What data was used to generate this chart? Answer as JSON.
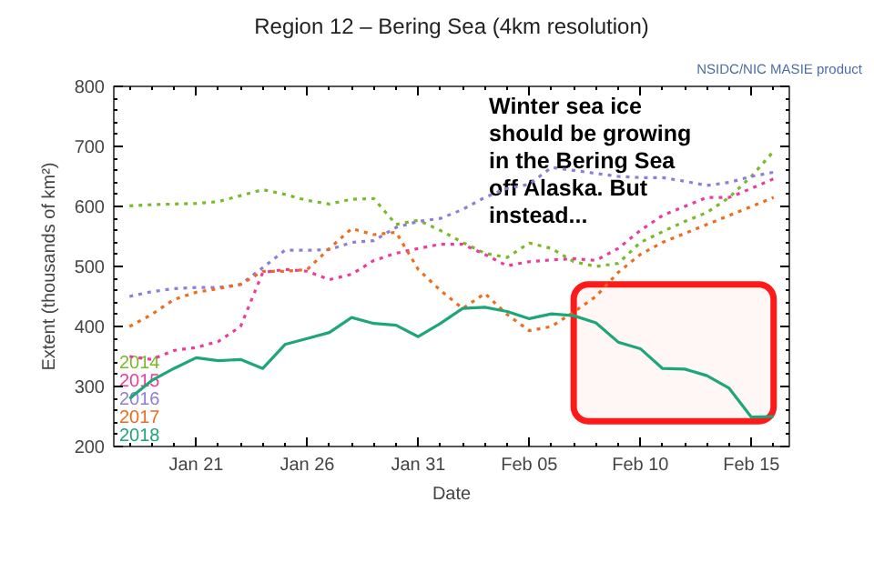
{
  "chart_data": {
    "type": "line",
    "title": "Region 12 – Bering Sea (4km resolution)",
    "xlabel": "Date",
    "ylabel": "Extent (thousands of km²)",
    "x": [
      "2018-01-18",
      "2018-01-19",
      "2018-01-20",
      "2018-01-21",
      "2018-01-22",
      "2018-01-23",
      "2018-01-24",
      "2018-01-25",
      "2018-01-26",
      "2018-01-27",
      "2018-01-28",
      "2018-01-29",
      "2018-01-30",
      "2018-01-31",
      "2018-02-01",
      "2018-02-02",
      "2018-02-03",
      "2018-02-04",
      "2018-02-05",
      "2018-02-06",
      "2018-02-07",
      "2018-02-08",
      "2018-02-09",
      "2018-02-10",
      "2018-02-11",
      "2018-02-12",
      "2018-02-13",
      "2018-02-14",
      "2018-02-15",
      "2018-02-16"
    ],
    "series": [
      {
        "name": "2014",
        "color": "#7ab929",
        "line_style": "dotted",
        "values": [
          601,
          603,
          604,
          605,
          608,
          618,
          628,
          620,
          610,
          604,
          612,
          613,
          570,
          577,
          560,
          540,
          522,
          515,
          539,
          530,
          508,
          500,
          505,
          540,
          558,
          575,
          590,
          615,
          650,
          692
        ]
      },
      {
        "name": "2015",
        "color": "#ec3c9b",
        "line_style": "dotted",
        "values": [
          350,
          345,
          360,
          365,
          375,
          400,
          490,
          495,
          492,
          478,
          487,
          510,
          522,
          530,
          537,
          537,
          520,
          501,
          508,
          511,
          513,
          510,
          530,
          560,
          585,
          600,
          615,
          615,
          630,
          646
        ]
      },
      {
        "name": "2016",
        "color": "#8b7fd9",
        "line_style": "dotted",
        "values": [
          450,
          458,
          463,
          465,
          465,
          470,
          498,
          527,
          527,
          528,
          540,
          543,
          565,
          575,
          580,
          595,
          615,
          630,
          637,
          665,
          660,
          655,
          650,
          648,
          648,
          642,
          635,
          640,
          650,
          657
        ]
      },
      {
        "name": "2017",
        "color": "#ef6c1e",
        "line_style": "dotted",
        "values": [
          400,
          420,
          445,
          457,
          463,
          470,
          492,
          492,
          495,
          530,
          563,
          553,
          557,
          495,
          460,
          430,
          455,
          420,
          393,
          400,
          424,
          450,
          490,
          520,
          540,
          555,
          570,
          585,
          600,
          615
        ]
      },
      {
        "name": "2018",
        "color": "#1fa57a",
        "line_style": "solid",
        "values": [
          280,
          310,
          330,
          348,
          343,
          345,
          330,
          370,
          380,
          390,
          415,
          405,
          402,
          383,
          405,
          430,
          432,
          425,
          413,
          421,
          418,
          406,
          374,
          363,
          330,
          329,
          318,
          297,
          249,
          250
        ]
      }
    ],
    "xlim": [
      "2018-01-17T07:00",
      "2018-02-16T17:00"
    ],
    "xticks": [
      {
        "value": "2018-01-21",
        "label": "Jan 21"
      },
      {
        "value": "2018-01-26",
        "label": "Jan 26"
      },
      {
        "value": "2018-01-31",
        "label": "Jan 31"
      },
      {
        "value": "2018-02-05",
        "label": "Feb 05"
      },
      {
        "value": "2018-02-10",
        "label": "Feb 10"
      },
      {
        "value": "2018-02-15",
        "label": "Feb 15"
      }
    ],
    "ylim": [
      200,
      800
    ],
    "yticks": [
      200,
      300,
      400,
      500,
      600,
      700,
      800
    ],
    "grid": false,
    "legend": "bottom left",
    "bands": [
      {
        "axis": "x",
        "from": "2018-02-07",
        "to": "2018-02-16",
        "color": "#ff1a1a"
      }
    ],
    "annotations": [
      "Winter sea ice should be growing in the Bering Sea off Alaska. But instead...",
      "NSIDC/NIC MASIE product"
    ]
  }
}
